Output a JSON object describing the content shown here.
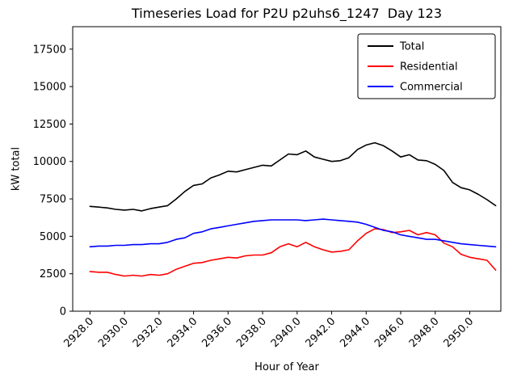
{
  "chart_data": {
    "type": "line",
    "title": "Timeseries Load for P2U p2uhs6_1247  Day 123",
    "xlabel": "Hour of Year",
    "ylabel": "kW total",
    "xlim": [
      2927.0,
      2951.8
    ],
    "ylim": [
      0,
      19000
    ],
    "xticks": [
      2928,
      2930,
      2932,
      2934,
      2936,
      2938,
      2940,
      2942,
      2944,
      2946,
      2948,
      2950
    ],
    "xtick_labels": [
      "2928.0",
      "2930.0",
      "2932.0",
      "2934.0",
      "2936.0",
      "2938.0",
      "2940.0",
      "2942.0",
      "2944.0",
      "2946.0",
      "2948.0",
      "2950.0"
    ],
    "yticks": [
      0,
      2500,
      5000,
      7500,
      10000,
      12500,
      15000,
      17500
    ],
    "grid": false,
    "legend": {
      "position": "upper right"
    },
    "x": [
      2928.0,
      2928.5,
      2929.0,
      2929.5,
      2930.0,
      2930.5,
      2931.0,
      2931.5,
      2932.0,
      2932.5,
      2933.0,
      2933.5,
      2934.0,
      2934.5,
      2935.0,
      2935.5,
      2936.0,
      2936.5,
      2937.0,
      2937.5,
      2938.0,
      2938.5,
      2939.0,
      2939.5,
      2940.0,
      2940.5,
      2941.0,
      2941.5,
      2942.0,
      2942.5,
      2943.0,
      2943.5,
      2944.0,
      2944.5,
      2945.0,
      2945.5,
      2946.0,
      2946.5,
      2947.0,
      2947.5,
      2948.0,
      2948.5,
      2949.0,
      2949.5,
      2950.0,
      2950.5,
      2951.0,
      2951.5
    ],
    "series": [
      {
        "name": "Total",
        "color": "#000000",
        "values": [
          7000,
          6950,
          6900,
          6800,
          6750,
          6800,
          6700,
          6850,
          6950,
          7050,
          7500,
          8000,
          8400,
          8500,
          8900,
          9100,
          9350,
          9300,
          9450,
          9600,
          9750,
          9700,
          10100,
          10500,
          10450,
          10700,
          10300,
          10150,
          10000,
          10050,
          10250,
          10800,
          11100,
          11250,
          11050,
          10700,
          10300,
          10450,
          10100,
          10050,
          9800,
          9400,
          8600,
          8250,
          8100,
          7800,
          7450,
          7050
        ]
      },
      {
        "name": "Residential",
        "color": "#ff0000",
        "values": [
          2650,
          2600,
          2600,
          2450,
          2350,
          2400,
          2350,
          2450,
          2400,
          2500,
          2800,
          3000,
          3200,
          3250,
          3400,
          3500,
          3600,
          3550,
          3700,
          3750,
          3750,
          3900,
          4300,
          4500,
          4300,
          4600,
          4300,
          4100,
          3950,
          4000,
          4100,
          4700,
          5200,
          5500,
          5450,
          5250,
          5300,
          5400,
          5100,
          5250,
          5100,
          4550,
          4300,
          3800,
          3600,
          3500,
          3400,
          2750
        ]
      },
      {
        "name": "Commercial",
        "color": "#0000ff",
        "values": [
          4300,
          4350,
          4350,
          4400,
          4400,
          4450,
          4450,
          4500,
          4500,
          4600,
          4800,
          4900,
          5200,
          5300,
          5500,
          5600,
          5700,
          5800,
          5900,
          6000,
          6050,
          6100,
          6100,
          6100,
          6100,
          6050,
          6100,
          6150,
          6100,
          6050,
          6000,
          5950,
          5800,
          5600,
          5400,
          5300,
          5100,
          5000,
          4900,
          4800,
          4800,
          4700,
          4600,
          4500,
          4450,
          4400,
          4350,
          4300
        ]
      }
    ]
  }
}
